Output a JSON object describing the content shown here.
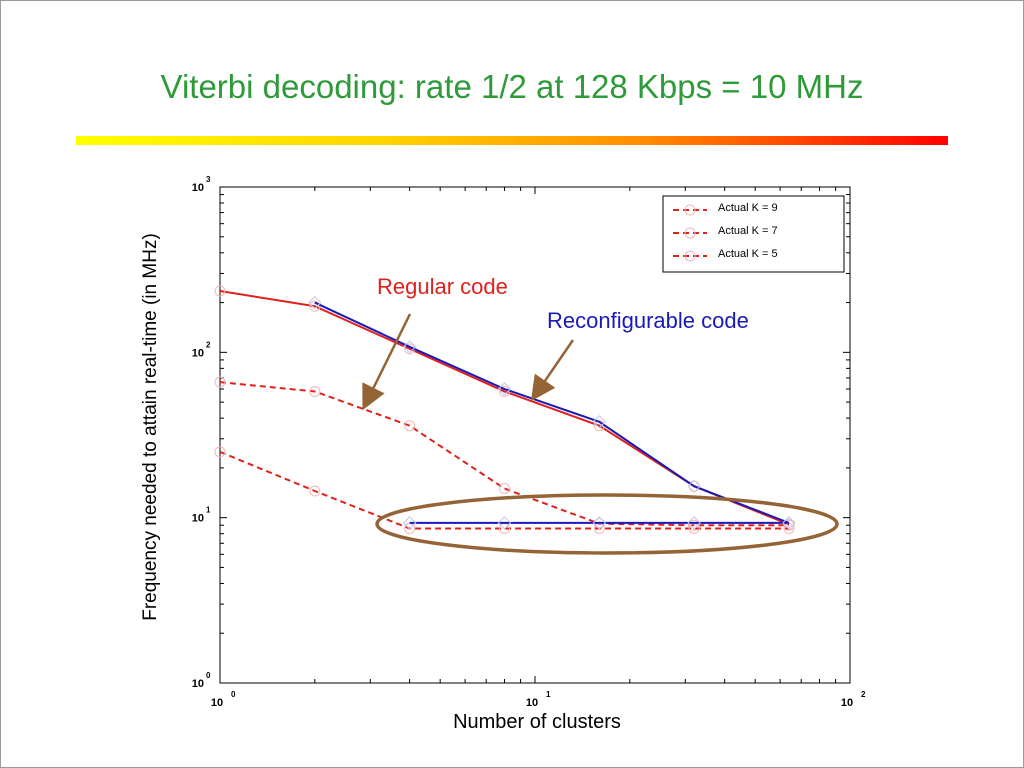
{
  "slide": {
    "title": "Viterbi decoding: rate 1/2 at 128 Kbps = 10 MHz"
  },
  "colors": {
    "title": "#2e9a3a",
    "regular": "#e0201c",
    "reconfigurable": "#1a1ab8",
    "ellipse": "#946437",
    "annotation_arrow": "#946437"
  },
  "chart_data": {
    "type": "line",
    "xlabel": "Number of clusters",
    "ylabel": "Frequency needed to attain real-time (in MHz)",
    "xscale": "log",
    "yscale": "log",
    "xlim": [
      1,
      100
    ],
    "ylim": [
      1,
      1000
    ],
    "x_ticks": [
      {
        "base": "10",
        "exp": "0",
        "value": 1
      },
      {
        "base": "10",
        "exp": "1",
        "value": 10
      },
      {
        "base": "10",
        "exp": "2",
        "value": 100
      }
    ],
    "y_ticks": [
      {
        "base": "10",
        "exp": "0",
        "value": 1
      },
      {
        "base": "10",
        "exp": "1",
        "value": 10
      },
      {
        "base": "10",
        "exp": "2",
        "value": 100
      },
      {
        "base": "10",
        "exp": "3",
        "value": 1000
      }
    ],
    "legend_position": "top-right",
    "series": [
      {
        "name": "Actual K = 9",
        "x": [
          1,
          2,
          4,
          8,
          16,
          32,
          64
        ],
        "values": [
          235,
          190,
          105,
          58,
          36,
          15.5,
          9.1
        ],
        "style": "solid",
        "color": "#e0201c"
      },
      {
        "name": "Actual K = 7",
        "x": [
          1,
          2,
          4,
          8,
          16,
          32,
          64
        ],
        "values": [
          66,
          58,
          36,
          15,
          9.2,
          9.0,
          9.0
        ],
        "style": "dashed",
        "color": "#e0201c"
      },
      {
        "name": "Actual K = 5",
        "x": [
          1,
          2,
          4,
          8,
          16,
          32,
          64
        ],
        "values": [
          25,
          14.5,
          8.6,
          8.6,
          8.6,
          8.6,
          8.6
        ],
        "style": "dashed",
        "color": "#e0201c"
      }
    ],
    "reconfigurable_series": [
      {
        "x": [
          2,
          4,
          8,
          16,
          32,
          64
        ],
        "values": [
          200,
          108,
          60,
          38,
          15.5,
          9.3
        ],
        "color": "#1a1ab8"
      },
      {
        "x": [
          4,
          8,
          16,
          32,
          64
        ],
        "values": [
          9.3,
          9.3,
          9.3,
          9.3,
          9.3
        ],
        "color": "#1a1ab8"
      }
    ],
    "annotations": [
      {
        "text": "Regular code",
        "color": "#e0201c"
      },
      {
        "text": "Reconfigurable code",
        "color": "#1a1ab8"
      }
    ]
  }
}
